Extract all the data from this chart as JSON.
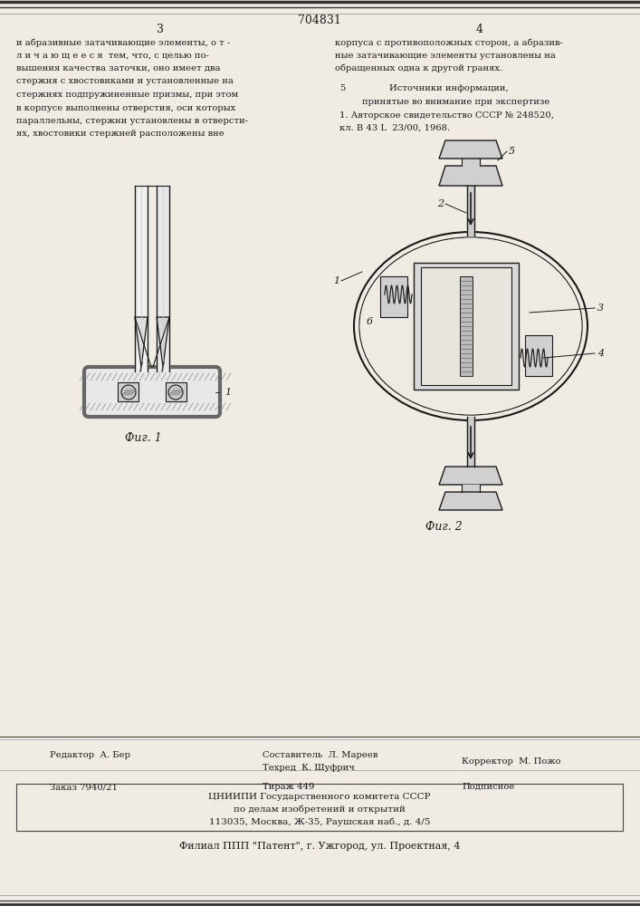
{
  "patent_number": "704831",
  "col_left_num": "3",
  "col_right_num": "4",
  "background_color": "#f0ece4",
  "text_color": "#1a1a1a",
  "left_col_text": [
    "и абразивные затачивающие элементы, о т -",
    "л и ч а ю щ е е с я  тем, что, с целью по-",
    "вышения качества заточки, оно имеет два",
    "стержня с хвостовиками и установленные на",
    "стержнях подпружиненные призмы, при этом",
    "в корпусе выполнены отверстия, оси которых",
    "параллельны, стержни установлены в отверсти-",
    "ях, хвостовики стержней расположены вне"
  ],
  "right_col_text": [
    "корпуса с противоположных сторон, а абразив-",
    "ные затачивающие элементы установлены на",
    "обращенных одна к другой гранях."
  ],
  "sources_title": "Источники информации,",
  "sources_line2": "принятые во внимание при экспертизе",
  "sources_ref": "1. Авторское свидетельство СССР № 248520,",
  "sources_ref2": "кл. В 43 L  23/00, 1968.",
  "sources_num": "5",
  "fig1_caption": "Фиг. 1",
  "fig2_caption": "Фиг. 2",
  "footer_editor": "Редактор  А. Бер",
  "footer_composer": "Составитель  Л. Мареев",
  "footer_tech": "Техред  К. Шуфрич",
  "footer_corrector": "Корректор  М. Пожо",
  "footer_order": "Заказ 7940/21",
  "footer_print": "Тираж 449",
  "footer_type": "Подписное",
  "footer_org": "ЦНИИПИ Государственного комитета СССР",
  "footer_org2": "по делам изобретений и открытий",
  "footer_addr": "113035, Москва, Ж-35, Раушская наб., д. 4/5",
  "footer_branch": "Филиал ППП \"Патент\", г. Ужгород, ул. Проектная, 4"
}
